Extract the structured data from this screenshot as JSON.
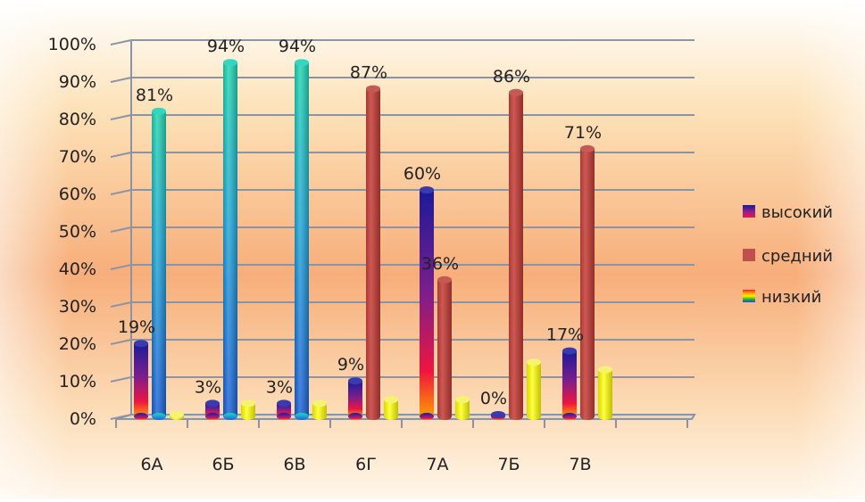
{
  "chart_data": {
    "type": "bar",
    "categories": [
      "6А",
      "6Б",
      "6В",
      "6Г",
      "7А",
      "7Б",
      "7В"
    ],
    "series": [
      {
        "name": "высокий",
        "values": [
          19,
          3,
          3,
          9,
          60,
          0,
          17
        ],
        "labels": [
          "19%",
          "3%",
          "3%",
          "9%",
          "60%",
          "0%",
          "17%"
        ]
      },
      {
        "name": "средний",
        "values": [
          81,
          94,
          94,
          87,
          36,
          86,
          71
        ],
        "labels": [
          "81%",
          "94%",
          "94%",
          "87%",
          "36%",
          "86%",
          "71%"
        ]
      },
      {
        "name": "низкий",
        "values": [
          0,
          3,
          3,
          4,
          4,
          14,
          12
        ],
        "labels": [
          "",
          "",
          "",
          "",
          "",
          "",
          ""
        ]
      }
    ],
    "ylim": [
      0,
      100
    ],
    "yticks": [
      "0%",
      "10%",
      "20%",
      "30%",
      "40%",
      "50%",
      "60%",
      "70%",
      "80%",
      "90%",
      "100%"
    ],
    "grid": true,
    "legend_position": "right"
  }
}
